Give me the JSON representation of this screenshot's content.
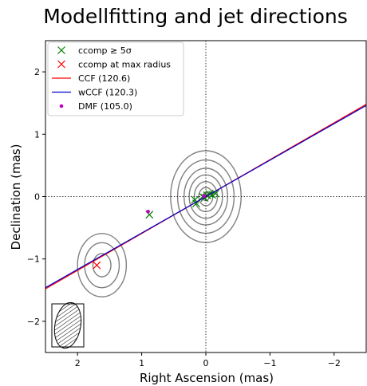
{
  "chart_data": {
    "type": "scatter",
    "title": "Modellfitting and jet directions",
    "xlabel": "Right Ascension (mas)",
    "ylabel": "Declination (mas)",
    "xlim": [
      2.5,
      -2.5
    ],
    "ylim": [
      -2.5,
      2.5
    ],
    "xticks": [
      2,
      1,
      0,
      -1,
      -2
    ],
    "yticks": [
      2,
      1,
      0,
      -1,
      -2
    ],
    "xtick_labels": [
      "2",
      "1",
      "0",
      "−1",
      "−2"
    ],
    "ytick_labels": [
      "2",
      "1",
      "0",
      "−1",
      "−2"
    ],
    "reference_lines": {
      "x": 0,
      "y": 0,
      "style": "dotted",
      "color": "#000000"
    },
    "legend": {
      "placement": "upper-left",
      "entries": [
        {
          "label": "ccomp  ≥  5σ",
          "marker": "x",
          "color": "#008000"
        },
        {
          "label": "ccomp at max radius",
          "marker": "x",
          "color": "#ff0000"
        },
        {
          "label": "CCF (120.6)",
          "marker": "line",
          "color": "#ff0000"
        },
        {
          "label": "wCCF (120.3)",
          "marker": "line",
          "color": "#0000cd"
        },
        {
          "label": "DMF (105.0)",
          "marker": "dot",
          "color": "#bf00bf"
        }
      ]
    },
    "series": [
      {
        "name": "ccomp  ≥  5σ",
        "kind": "points",
        "marker": "x",
        "color": "#008000",
        "x": [
          0.88,
          0.17,
          0.15,
          0.05,
          0.02,
          -0.02,
          -0.06,
          -0.1,
          -0.15
        ],
        "y": [
          -0.29,
          -0.05,
          -0.11,
          0.0,
          -0.02,
          0.02,
          0.04,
          0.03,
          0.05
        ]
      },
      {
        "name": "ccomp at max radius",
        "kind": "points",
        "marker": "x",
        "color": "#ff0000",
        "x": [
          1.7
        ],
        "y": [
          -1.1
        ]
      },
      {
        "name": "CCF (120.6)",
        "kind": "line",
        "color": "#ff0000",
        "angle_deg": 120.6,
        "x": [
          2.5,
          -2.5
        ],
        "y": [
          -1.48,
          1.48
        ]
      },
      {
        "name": "wCCF (120.3)",
        "kind": "line",
        "color": "#0000cd",
        "angle_deg": 120.3,
        "x": [
          2.5,
          -2.5
        ],
        "y": [
          -1.46,
          1.46
        ]
      },
      {
        "name": "DMF (105.0)",
        "kind": "points",
        "marker": "dot",
        "color": "#bf00bf",
        "x": [
          0.9,
          0.03
        ],
        "y": [
          -0.24,
          0.01
        ]
      }
    ],
    "contours": {
      "color": "#808080",
      "components": [
        {
          "x": 0.0,
          "y": 0.0,
          "levels": [
            0.05,
            0.11,
            0.18,
            0.26,
            0.34,
            0.44,
            0.55
          ]
        },
        {
          "x": 1.62,
          "y": -1.1,
          "levels": [
            0.14,
            0.27,
            0.38
          ]
        }
      ]
    },
    "beam": {
      "major_mas": 0.72,
      "minor_mas": 0.4,
      "pa_deg": 10,
      "placement": "lower-left"
    }
  }
}
